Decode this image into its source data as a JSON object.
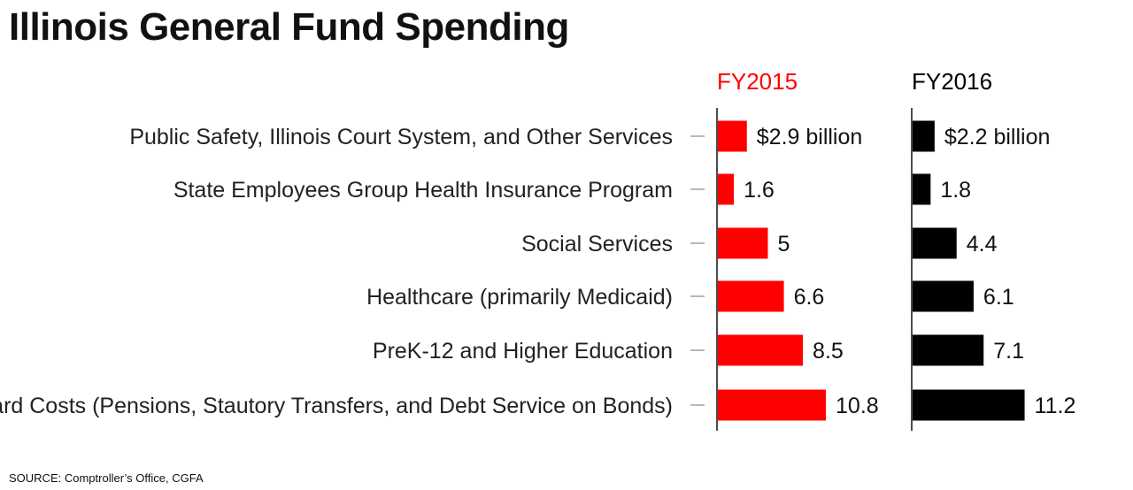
{
  "title": "Illinois General Fund Spending",
  "source": "SOURCE: Comptroller’s Office, CGFA",
  "chart_data": {
    "type": "bar",
    "orientation": "horizontal",
    "layout": "small-multiples",
    "title": "Illinois General Fund Spending",
    "categories": [
      "Public Safety, Illinois Court System, and Other Services",
      "State Employees Group Health Insurance Program",
      "Social Services",
      "Healthcare (primarily Medicaid)",
      "PreK-12 and Higher Education",
      "Hard Costs (Pensions, Stautory Transfers, and Debt Service on Bonds)"
    ],
    "series": [
      {
        "name": "FY2015",
        "color": "#ff0000",
        "values": [
          2.9,
          1.6,
          5,
          6.6,
          8.5,
          10.8
        ],
        "labels": [
          "$2.9 billion",
          "1.6",
          "5",
          "6.6",
          "8.5",
          "10.8"
        ]
      },
      {
        "name": "FY2016",
        "color": "#000000",
        "values": [
          2.2,
          1.8,
          4.4,
          6.1,
          7.1,
          11.2
        ],
        "labels": [
          "$2.2 billion",
          "1.8",
          "4.4",
          "6.1",
          "7.1",
          "11.2"
        ]
      }
    ],
    "unit": "billion",
    "xlim": [
      0,
      11.2
    ],
    "grid": false,
    "legend": "none"
  }
}
